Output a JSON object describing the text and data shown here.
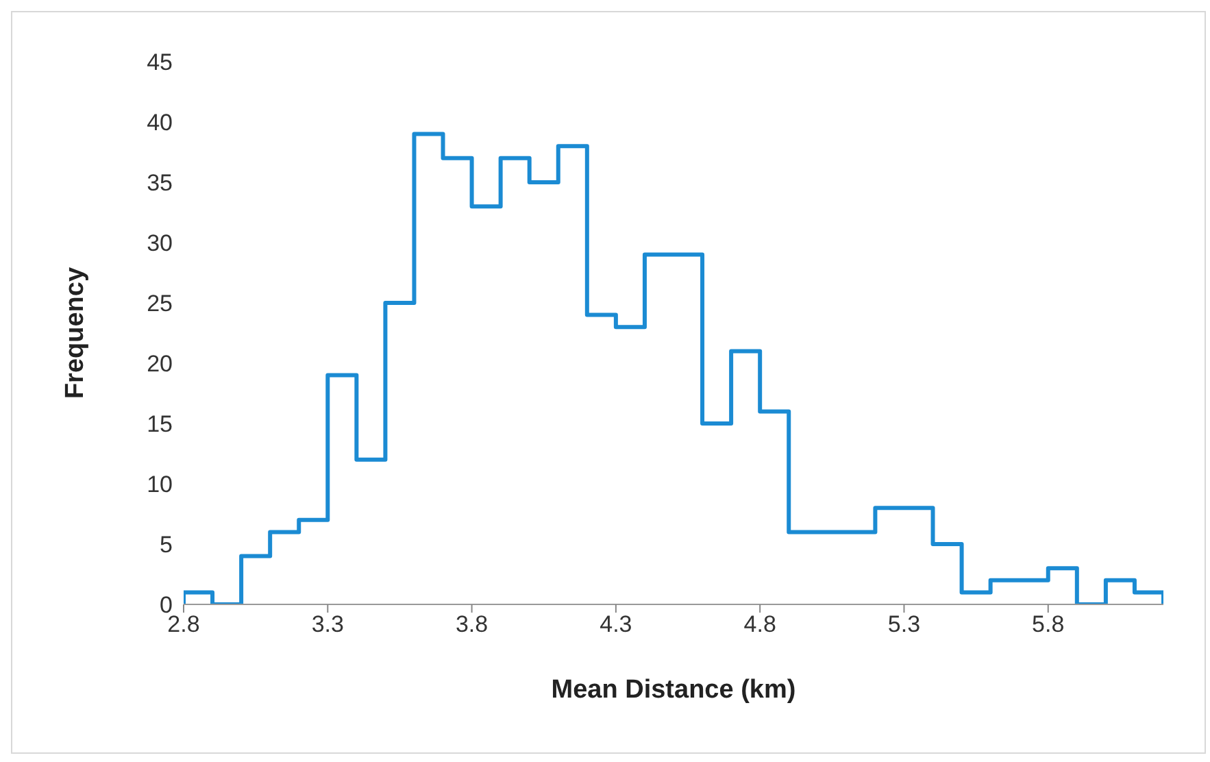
{
  "chart_data": {
    "type": "histogram",
    "xlabel": "Mean Distance (km)",
    "ylabel": "Frequency",
    "color": "#1b8bd3",
    "bins": [
      2.8,
      2.9,
      3.0,
      3.1,
      3.2,
      3.3,
      3.4,
      3.5,
      3.6,
      3.7,
      3.8,
      3.9,
      4.0,
      4.1,
      4.2,
      4.3,
      4.4,
      4.5,
      4.6,
      4.7,
      4.8,
      4.9,
      5.0,
      5.1,
      5.2,
      5.3,
      5.4,
      5.5,
      5.6,
      5.7,
      5.8,
      5.9,
      6.0,
      6.1,
      6.2
    ],
    "values": [
      1,
      0,
      4,
      6,
      7,
      19,
      12,
      25,
      39,
      37,
      33,
      37,
      35,
      38,
      24,
      23,
      29,
      29,
      15,
      21,
      16,
      6,
      6,
      6,
      8,
      8,
      5,
      1,
      2,
      2,
      3,
      0,
      2,
      1
    ],
    "xlim": [
      2.8,
      6.2
    ],
    "xticks": [
      2.8,
      3.3,
      3.8,
      4.3,
      4.8,
      5.3,
      5.8
    ],
    "ylim": [
      0,
      45
    ],
    "yticks": [
      0,
      5,
      10,
      15,
      20,
      25,
      30,
      35,
      40,
      45
    ],
    "grid": false,
    "legend": false
  }
}
